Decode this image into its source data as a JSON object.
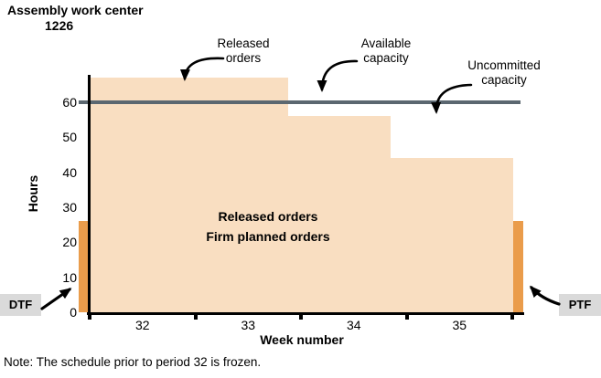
{
  "title": {
    "line1": "Assembly work center",
    "line2": "1226"
  },
  "axis": {
    "y_label": "Hours",
    "x_label": "Week number"
  },
  "callouts": {
    "released": "Released orders",
    "available": "Available capacity",
    "uncommitted": "Uncommitted capacity"
  },
  "area_label": {
    "line1": "Released orders",
    "line2": "Firm planned orders"
  },
  "fence_labels": {
    "dtf": "DTF",
    "ptf": "PTF"
  },
  "note": "Note: The schedule prior to period 32 is frozen.",
  "colors": {
    "load_fill": "#F9DEC1",
    "fence": "#EA9C4B",
    "capacity_line": "#5B6770",
    "tag_bg": "#DADADA",
    "axis": "#000000"
  },
  "chart_data": {
    "type": "area",
    "title": "Assembly work center 1226",
    "xlabel": "Week number",
    "ylabel": "Hours",
    "x_tick_labels": [
      "32",
      "33",
      "34",
      "35"
    ],
    "week_boundaries": [
      32,
      33,
      34,
      35,
      36
    ],
    "xlim": [
      31.9,
      36.1
    ],
    "y_ticks": [
      0,
      10,
      20,
      30,
      40,
      50,
      60
    ],
    "ylim": [
      0,
      68
    ],
    "area_series_label": "Released orders / Firm planned orders",
    "load_steps": [
      {
        "week_from": 32.0,
        "week_to": 33.88,
        "hours": 67
      },
      {
        "week_from": 33.88,
        "week_to": 34.85,
        "hours": 56
      },
      {
        "week_from": 34.85,
        "week_to": 36.01,
        "hours": 44
      }
    ],
    "available_capacity_hours": 60,
    "fences": [
      {
        "name": "DTF",
        "week_from": 31.9,
        "week_to": 31.99,
        "hours": 26
      },
      {
        "name": "PTF",
        "week_from": 36.01,
        "week_to": 36.1,
        "hours": 26
      }
    ]
  }
}
